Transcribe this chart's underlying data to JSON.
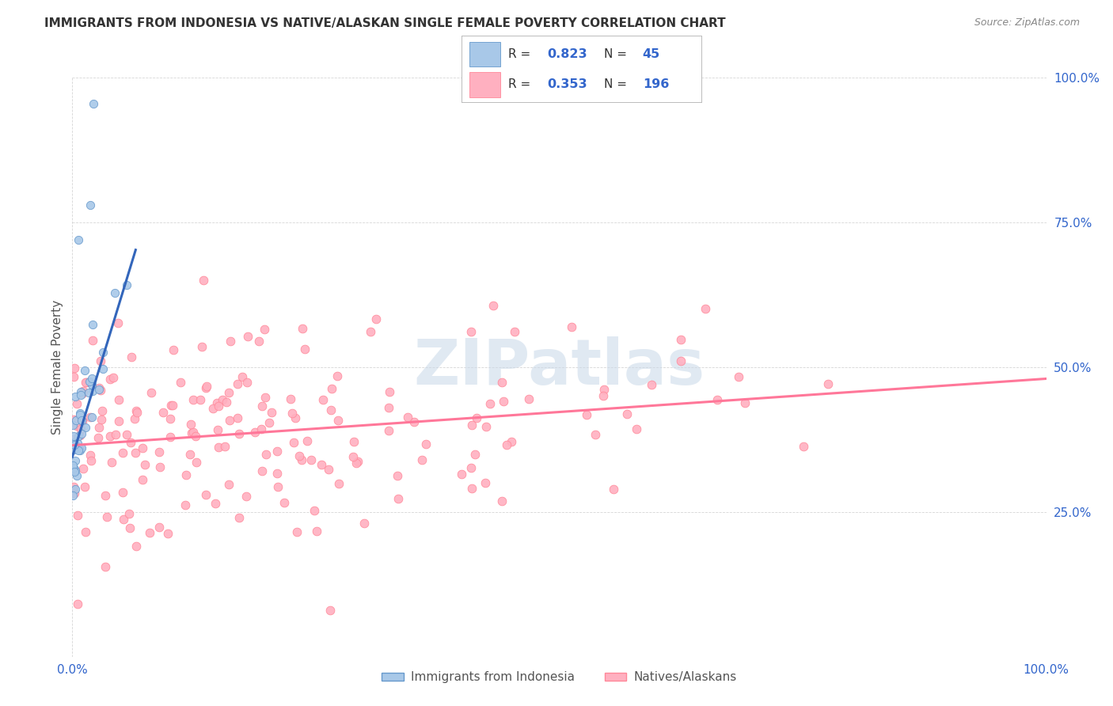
{
  "title": "IMMIGRANTS FROM INDONESIA VS NATIVE/ALASKAN SINGLE FEMALE POVERTY CORRELATION CHART",
  "source": "Source: ZipAtlas.com",
  "ylabel": "Single Female Poverty",
  "legend1_r": "0.823",
  "legend1_n": "45",
  "legend2_r": "0.353",
  "legend2_n": "196",
  "legend_label1": "Immigrants from Indonesia",
  "legend_label2": "Natives/Alaskans",
  "blue_color": "#A8C8E8",
  "blue_edge_color": "#6699CC",
  "pink_color": "#FFB0C0",
  "pink_edge_color": "#FF8899",
  "blue_line_color": "#3366BB",
  "pink_line_color": "#FF7799",
  "legend_r_color": "#3366CC",
  "legend_n_color": "#3366CC",
  "watermark": "ZIPatlas",
  "watermark_color": "#C8D8E8",
  "title_color": "#333333",
  "source_color": "#888888",
  "ylabel_color": "#555555",
  "tick_color": "#3366CC",
  "grid_color": "#CCCCCC",
  "blue_line_intercept": 0.345,
  "blue_line_slope": 5.5,
  "pink_line_intercept": 0.365,
  "pink_line_slope": 0.115
}
